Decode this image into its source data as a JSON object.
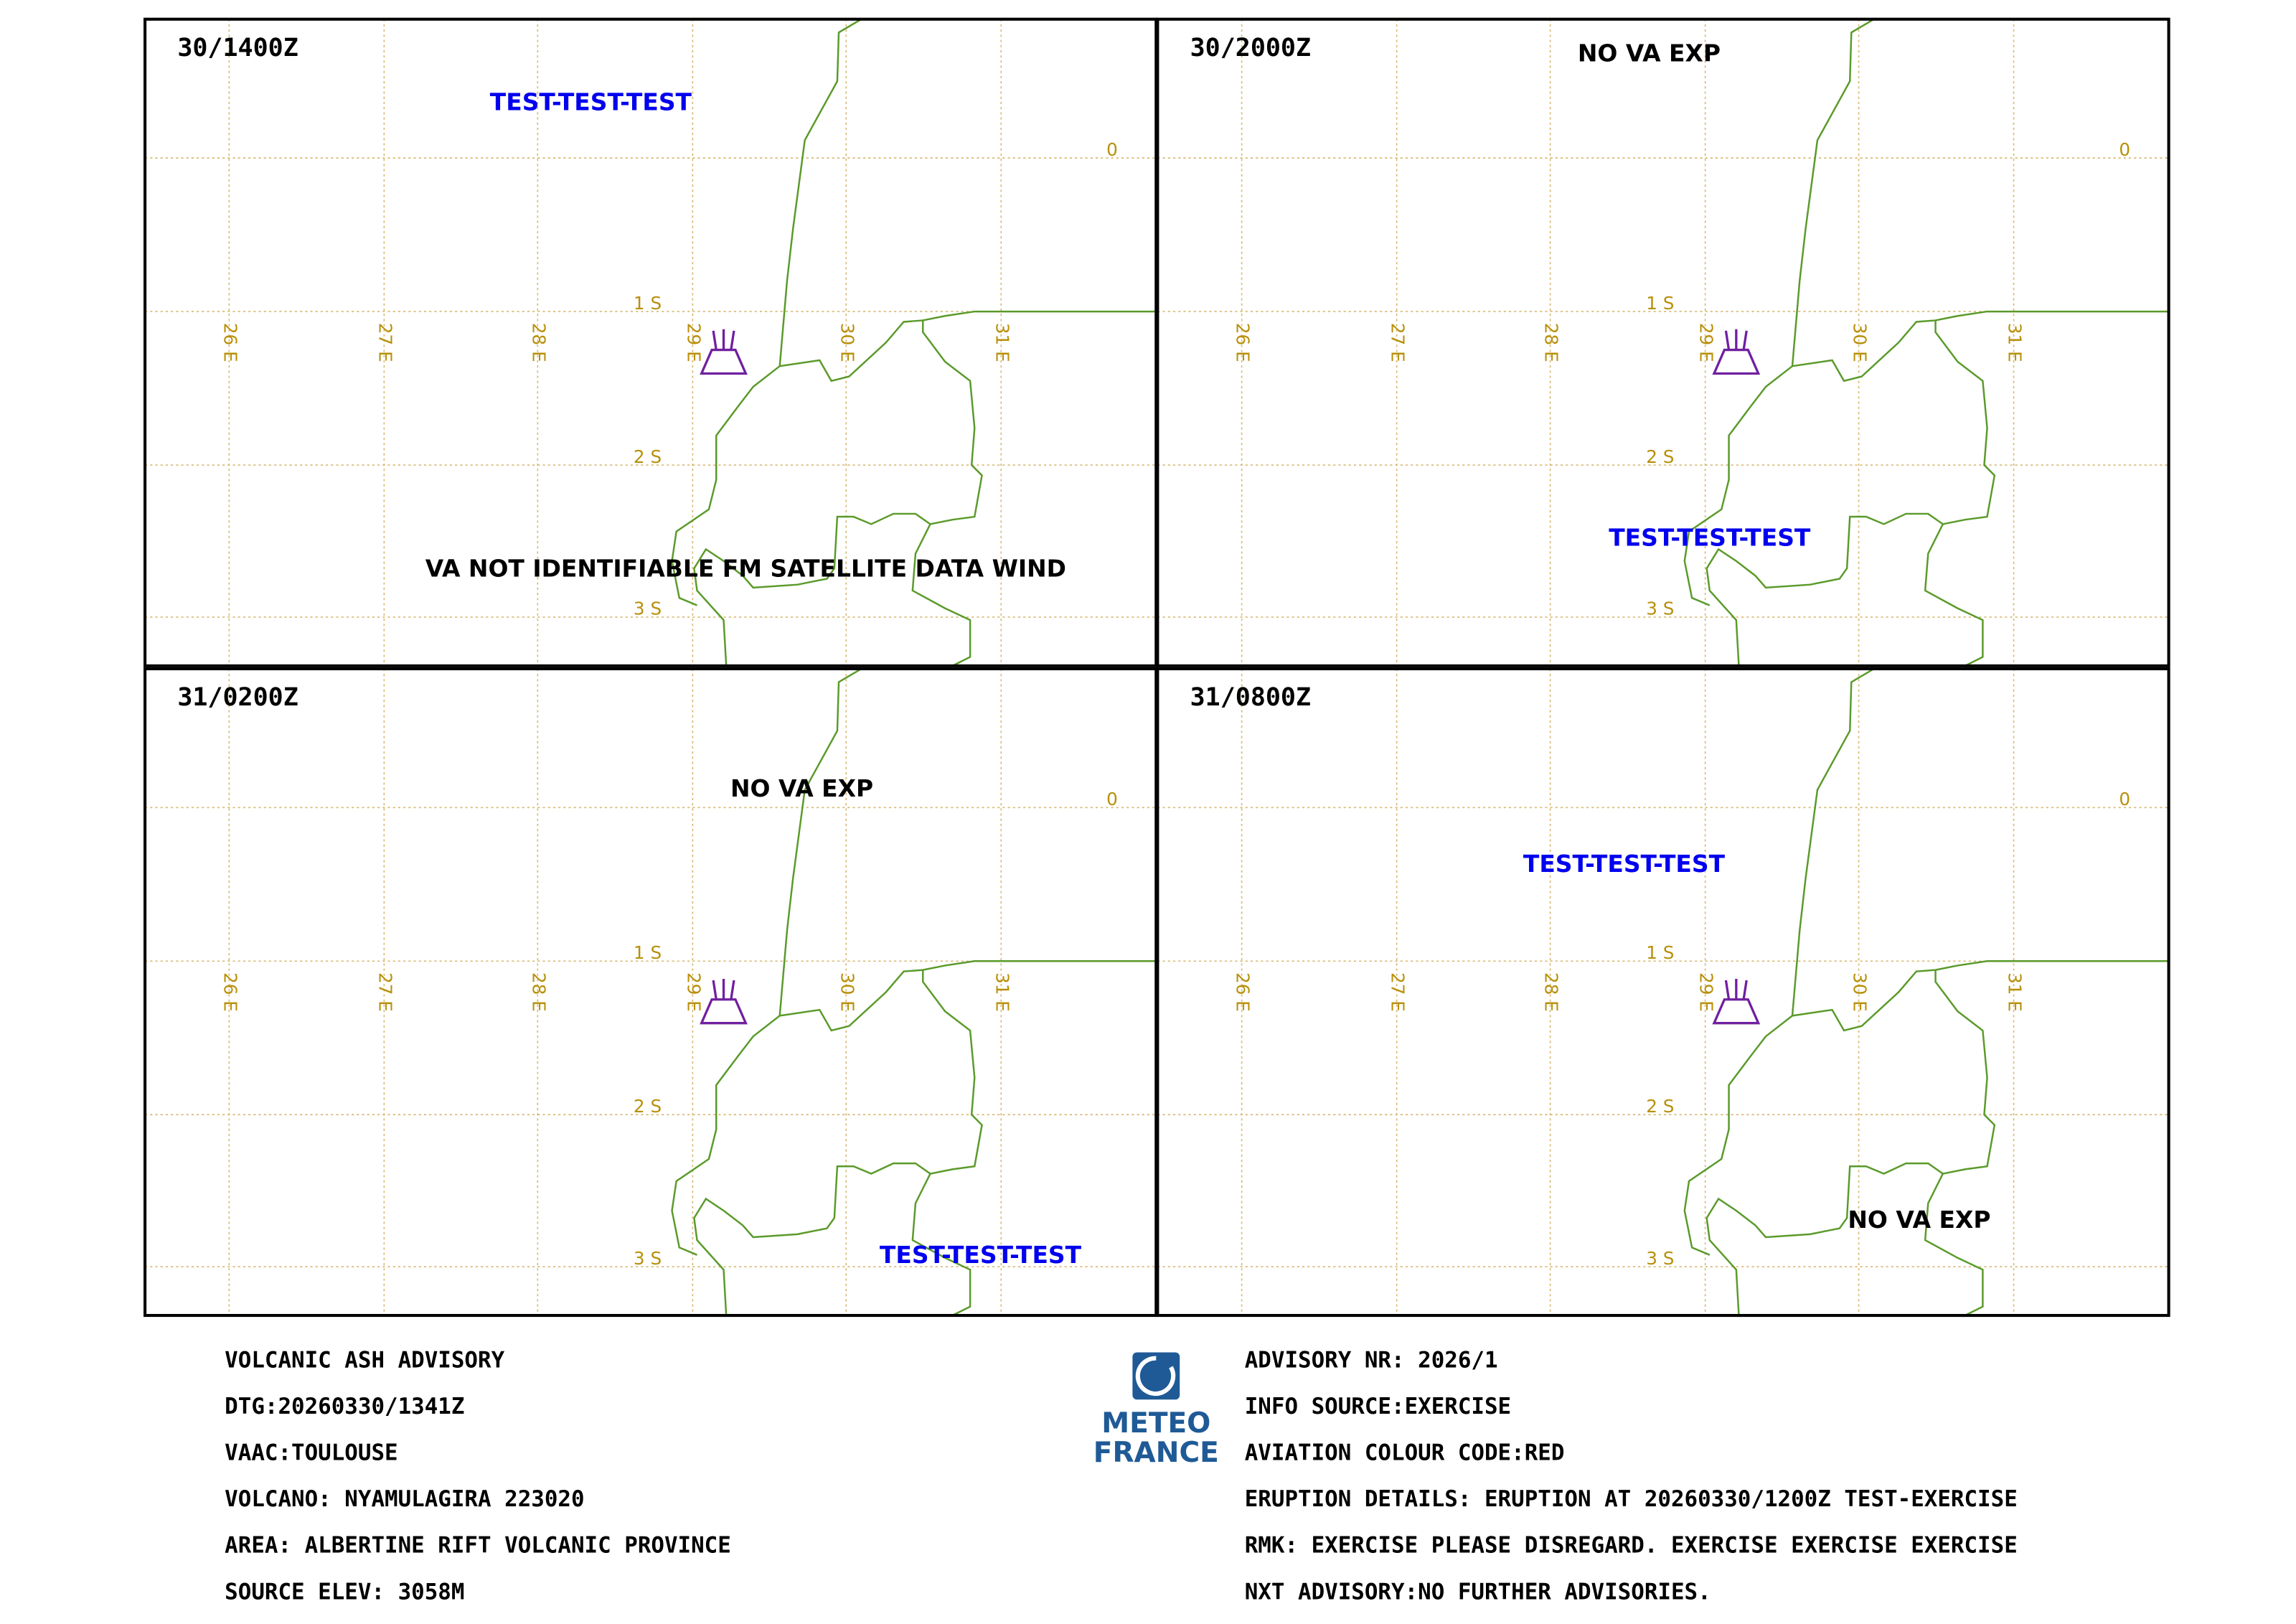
{
  "grid": {
    "lon_labels": [
      "26 E",
      "27 E",
      "28 E",
      "29 E",
      "30 E",
      "31 E"
    ],
    "lat_labels": [
      "0",
      "1 S",
      "2 S",
      "3 S"
    ]
  },
  "panels": [
    {
      "time": "30/1400Z",
      "labels": [
        {
          "text": "TEST-TEST-TEST",
          "color": "#0000ee"
        },
        {
          "text": "VA NOT IDENTIFIABLE FM SATELLITE DATA WIND",
          "color": "#000000"
        }
      ]
    },
    {
      "time": "30/2000Z",
      "labels": [
        {
          "text": "NO VA EXP",
          "color": "#000000"
        },
        {
          "text": "TEST-TEST-TEST",
          "color": "#0000ee"
        }
      ]
    },
    {
      "time": "31/0200Z",
      "labels": [
        {
          "text": "NO VA EXP",
          "color": "#000000"
        },
        {
          "text": "TEST-TEST-TEST",
          "color": "#0000ee"
        }
      ]
    },
    {
      "time": "31/0800Z",
      "labels": [
        {
          "text": "TEST-TEST-TEST",
          "color": "#0000ee"
        },
        {
          "text": "NO VA EXP",
          "color": "#000000"
        }
      ]
    }
  ],
  "logo": {
    "line1": "METEO",
    "line2": "FRANCE"
  },
  "advisory": {
    "left": [
      "VOLCANIC ASH ADVISORY",
      "DTG:20260330/1341Z",
      "VAAC:TOULOUSE",
      "VOLCANO: NYAMULAGIRA 223020",
      "AREA: ALBERTINE RIFT VOLCANIC PROVINCE",
      "SOURCE ELEV: 3058M"
    ],
    "right": [
      "ADVISORY NR: 2026/1",
      "INFO SOURCE:EXERCISE",
      "AVIATION COLOUR CODE:RED",
      "ERUPTION DETAILS: ERUPTION AT 20260330/1200Z TEST-EXERCISE",
      "RMK: EXERCISE  PLEASE DISREGARD.  EXERCISE EXERCISE EXERCISE",
      "NXT ADVISORY:NO FURTHER ADVISORIES."
    ]
  }
}
